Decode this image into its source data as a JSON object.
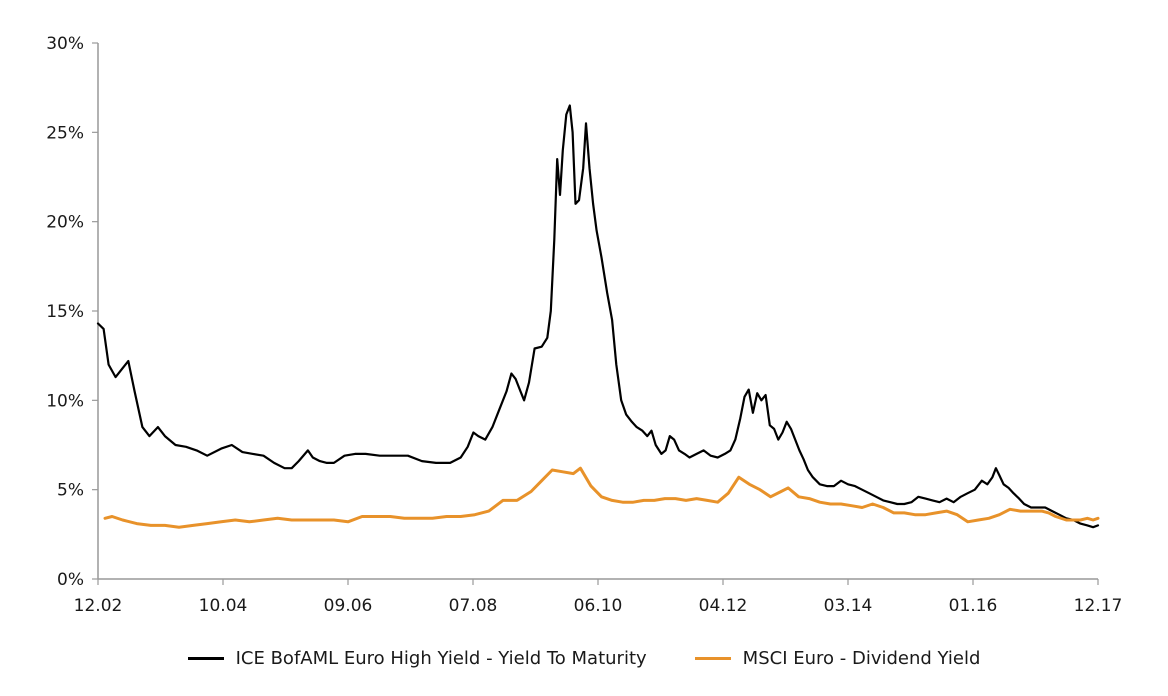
{
  "chart_data": {
    "type": "line",
    "title": "",
    "xlabel": "",
    "ylabel": "",
    "ylim": [
      0,
      30
    ],
    "y_ticks": [
      "0%",
      "5%",
      "10%",
      "15%",
      "20%",
      "25%",
      "30%"
    ],
    "x_ticks": [
      "12.02",
      "10.04",
      "09.06",
      "07.08",
      "06.10",
      "04.12",
      "03.14",
      "01.16",
      "12.17"
    ],
    "grid": false,
    "legend_position": "bottom",
    "series": [
      {
        "name": "ICE BofAML Euro High Yield - Yield To Maturity",
        "color": "#000000",
        "points": [
          [
            0.0,
            14.3
          ],
          [
            0.8,
            14.0
          ],
          [
            1.5,
            12.0
          ],
          [
            2.5,
            11.3
          ],
          [
            3.5,
            11.8
          ],
          [
            4.3,
            12.2
          ],
          [
            5.2,
            10.5
          ],
          [
            6.3,
            8.5
          ],
          [
            7.3,
            8.0
          ],
          [
            8.5,
            8.5
          ],
          [
            9.5,
            8.0
          ],
          [
            11.0,
            7.5
          ],
          [
            12.5,
            7.4
          ],
          [
            14.0,
            7.2
          ],
          [
            15.5,
            6.9
          ],
          [
            17.5,
            7.3
          ],
          [
            19.0,
            7.5
          ],
          [
            20.5,
            7.1
          ],
          [
            22.0,
            7.0
          ],
          [
            23.5,
            6.9
          ],
          [
            25.0,
            6.5
          ],
          [
            26.5,
            6.2
          ],
          [
            27.5,
            6.2
          ],
          [
            28.5,
            6.6
          ],
          [
            29.8,
            7.2
          ],
          [
            30.5,
            6.8
          ],
          [
            31.5,
            6.6
          ],
          [
            32.5,
            6.5
          ],
          [
            33.5,
            6.5
          ],
          [
            35.0,
            6.9
          ],
          [
            36.5,
            7.0
          ],
          [
            38.0,
            7.0
          ],
          [
            40.0,
            6.9
          ],
          [
            42.0,
            6.9
          ],
          [
            44.0,
            6.9
          ],
          [
            46.0,
            6.6
          ],
          [
            48.0,
            6.5
          ],
          [
            50.0,
            6.5
          ],
          [
            51.5,
            6.8
          ],
          [
            52.5,
            7.4
          ],
          [
            53.3,
            8.2
          ],
          [
            54.0,
            8.0
          ],
          [
            55.0,
            7.8
          ],
          [
            56.0,
            8.5
          ],
          [
            57.0,
            9.5
          ],
          [
            58.0,
            10.5
          ],
          [
            58.7,
            11.5
          ],
          [
            59.3,
            11.2
          ],
          [
            60.0,
            10.5
          ],
          [
            60.5,
            10.0
          ],
          [
            61.2,
            11.0
          ],
          [
            62.0,
            12.9
          ],
          [
            63.0,
            13.0
          ],
          [
            63.8,
            13.5
          ],
          [
            64.3,
            15.0
          ],
          [
            64.8,
            19.0
          ],
          [
            65.2,
            23.5
          ],
          [
            65.6,
            21.5
          ],
          [
            66.0,
            24.0
          ],
          [
            66.5,
            26.0
          ],
          [
            67.0,
            26.5
          ],
          [
            67.4,
            25.0
          ],
          [
            67.8,
            21.0
          ],
          [
            68.3,
            21.2
          ],
          [
            68.9,
            23.0
          ],
          [
            69.3,
            25.5
          ],
          [
            69.8,
            23.0
          ],
          [
            70.3,
            21.0
          ],
          [
            70.8,
            19.5
          ],
          [
            71.5,
            18.0
          ],
          [
            72.3,
            16.0
          ],
          [
            73.0,
            14.5
          ],
          [
            73.6,
            12.0
          ],
          [
            74.3,
            10.0
          ],
          [
            75.0,
            9.2
          ],
          [
            75.8,
            8.8
          ],
          [
            76.5,
            8.5
          ],
          [
            77.3,
            8.3
          ],
          [
            78.0,
            8.0
          ],
          [
            78.6,
            8.3
          ],
          [
            79.2,
            7.5
          ],
          [
            80.0,
            7.0
          ],
          [
            80.6,
            7.2
          ],
          [
            81.2,
            8.0
          ],
          [
            81.8,
            7.8
          ],
          [
            82.5,
            7.2
          ],
          [
            83.3,
            7.0
          ],
          [
            84.0,
            6.8
          ],
          [
            85.0,
            7.0
          ],
          [
            86.0,
            7.2
          ],
          [
            87.0,
            6.9
          ],
          [
            88.0,
            6.8
          ],
          [
            89.0,
            7.0
          ],
          [
            89.8,
            7.2
          ],
          [
            90.5,
            7.8
          ],
          [
            91.2,
            9.0
          ],
          [
            91.8,
            10.2
          ],
          [
            92.4,
            10.6
          ],
          [
            93.0,
            9.3
          ],
          [
            93.6,
            10.4
          ],
          [
            94.2,
            10.0
          ],
          [
            94.8,
            10.3
          ],
          [
            95.4,
            8.6
          ],
          [
            96.0,
            8.4
          ],
          [
            96.6,
            7.8
          ],
          [
            97.2,
            8.2
          ],
          [
            97.8,
            8.8
          ],
          [
            98.4,
            8.4
          ],
          [
            99.0,
            7.8
          ],
          [
            99.6,
            7.2
          ],
          [
            100.2,
            6.7
          ],
          [
            100.8,
            6.1
          ],
          [
            101.5,
            5.7
          ],
          [
            102.5,
            5.3
          ],
          [
            103.5,
            5.2
          ],
          [
            104.5,
            5.2
          ],
          [
            105.5,
            5.5
          ],
          [
            106.5,
            5.3
          ],
          [
            107.5,
            5.2
          ],
          [
            108.5,
            5.0
          ],
          [
            109.5,
            4.8
          ],
          [
            110.5,
            4.6
          ],
          [
            111.5,
            4.4
          ],
          [
            112.5,
            4.3
          ],
          [
            113.5,
            4.2
          ],
          [
            114.5,
            4.2
          ],
          [
            115.5,
            4.3
          ],
          [
            116.5,
            4.6
          ],
          [
            117.5,
            4.5
          ],
          [
            118.5,
            4.4
          ],
          [
            119.5,
            4.3
          ],
          [
            120.5,
            4.5
          ],
          [
            121.5,
            4.3
          ],
          [
            122.5,
            4.6
          ],
          [
            123.5,
            4.8
          ],
          [
            124.5,
            5.0
          ],
          [
            125.5,
            5.5
          ],
          [
            126.3,
            5.3
          ],
          [
            127.0,
            5.7
          ],
          [
            127.5,
            6.2
          ],
          [
            128.0,
            5.8
          ],
          [
            128.6,
            5.3
          ],
          [
            129.3,
            5.1
          ],
          [
            130.0,
            4.8
          ],
          [
            130.8,
            4.5
          ],
          [
            131.5,
            4.2
          ],
          [
            132.5,
            4.0
          ],
          [
            133.5,
            4.0
          ],
          [
            134.5,
            4.0
          ],
          [
            135.5,
            3.8
          ],
          [
            136.5,
            3.6
          ],
          [
            137.5,
            3.4
          ],
          [
            138.5,
            3.3
          ],
          [
            139.5,
            3.1
          ],
          [
            140.5,
            3.0
          ],
          [
            141.3,
            2.9
          ],
          [
            142.0,
            3.0
          ]
        ]
      },
      {
        "name": "MSCI Euro - Dividend Yield",
        "color": "#E8922A",
        "points": [
          [
            1.0,
            3.4
          ],
          [
            2.0,
            3.5
          ],
          [
            3.5,
            3.3
          ],
          [
            5.5,
            3.1
          ],
          [
            7.5,
            3.0
          ],
          [
            9.5,
            3.0
          ],
          [
            11.5,
            2.9
          ],
          [
            13.5,
            3.0
          ],
          [
            15.5,
            3.1
          ],
          [
            17.5,
            3.2
          ],
          [
            19.5,
            3.3
          ],
          [
            21.5,
            3.2
          ],
          [
            23.5,
            3.3
          ],
          [
            25.5,
            3.4
          ],
          [
            27.5,
            3.3
          ],
          [
            29.5,
            3.3
          ],
          [
            31.5,
            3.3
          ],
          [
            33.5,
            3.3
          ],
          [
            35.5,
            3.2
          ],
          [
            37.5,
            3.5
          ],
          [
            39.5,
            3.5
          ],
          [
            41.5,
            3.5
          ],
          [
            43.5,
            3.4
          ],
          [
            45.5,
            3.4
          ],
          [
            47.5,
            3.4
          ],
          [
            49.5,
            3.5
          ],
          [
            51.5,
            3.5
          ],
          [
            53.5,
            3.6
          ],
          [
            55.5,
            3.8
          ],
          [
            57.5,
            4.4
          ],
          [
            59.5,
            4.4
          ],
          [
            61.5,
            4.9
          ],
          [
            63.0,
            5.5
          ],
          [
            64.5,
            6.1
          ],
          [
            66.0,
            6.0
          ],
          [
            67.5,
            5.9
          ],
          [
            68.5,
            6.2
          ],
          [
            70.0,
            5.2
          ],
          [
            71.5,
            4.6
          ],
          [
            73.0,
            4.4
          ],
          [
            74.5,
            4.3
          ],
          [
            76.0,
            4.3
          ],
          [
            77.5,
            4.4
          ],
          [
            79.0,
            4.4
          ],
          [
            80.5,
            4.5
          ],
          [
            82.0,
            4.5
          ],
          [
            83.5,
            4.4
          ],
          [
            85.0,
            4.5
          ],
          [
            86.5,
            4.4
          ],
          [
            88.0,
            4.3
          ],
          [
            89.5,
            4.8
          ],
          [
            91.0,
            5.7
          ],
          [
            92.5,
            5.3
          ],
          [
            94.0,
            5.0
          ],
          [
            95.5,
            4.6
          ],
          [
            97.0,
            4.9
          ],
          [
            98.0,
            5.1
          ],
          [
            99.5,
            4.6
          ],
          [
            101.0,
            4.5
          ],
          [
            102.5,
            4.3
          ],
          [
            104.0,
            4.2
          ],
          [
            105.5,
            4.2
          ],
          [
            107.0,
            4.1
          ],
          [
            108.5,
            4.0
          ],
          [
            110.0,
            4.2
          ],
          [
            111.5,
            4.0
          ],
          [
            113.0,
            3.7
          ],
          [
            114.5,
            3.7
          ],
          [
            116.0,
            3.6
          ],
          [
            117.5,
            3.6
          ],
          [
            119.0,
            3.7
          ],
          [
            120.5,
            3.8
          ],
          [
            122.0,
            3.6
          ],
          [
            123.5,
            3.2
          ],
          [
            125.0,
            3.3
          ],
          [
            126.5,
            3.4
          ],
          [
            128.0,
            3.6
          ],
          [
            129.5,
            3.9
          ],
          [
            131.0,
            3.8
          ],
          [
            132.5,
            3.8
          ],
          [
            134.0,
            3.8
          ],
          [
            135.0,
            3.7
          ],
          [
            136.0,
            3.5
          ],
          [
            137.5,
            3.3
          ],
          [
            138.5,
            3.3
          ],
          [
            139.5,
            3.3
          ],
          [
            140.5,
            3.4
          ],
          [
            141.3,
            3.3
          ],
          [
            142.0,
            3.4
          ]
        ]
      }
    ]
  }
}
